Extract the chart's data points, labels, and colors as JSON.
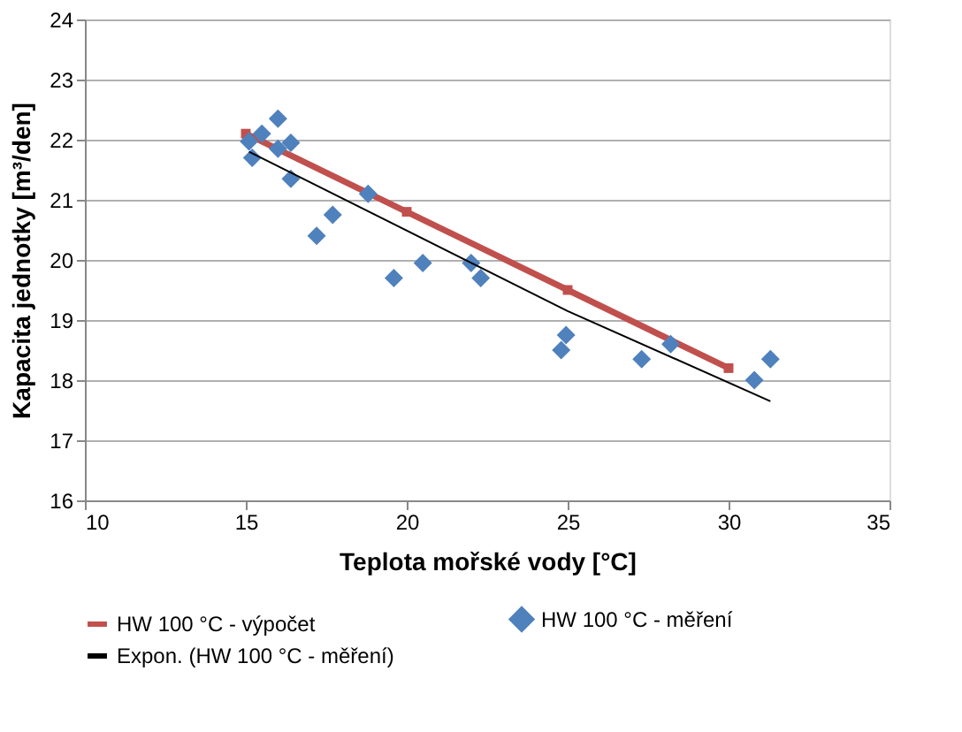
{
  "chart_data": {
    "type": "scatter",
    "xlabel": "Teplota mořské vody  [°C]",
    "ylabel": "Kapacita jednotky  [m³/den]",
    "xlim": [
      10,
      35
    ],
    "xticks": [
      10,
      15,
      20,
      25,
      30,
      35
    ],
    "ylim": [
      16,
      24
    ],
    "yticks": [
      16,
      17,
      18,
      19,
      20,
      21,
      22,
      23,
      24
    ],
    "grid": "y",
    "legend": "bottom",
    "series": [
      {
        "name": "HW 100 °C - výpočet",
        "type": "line",
        "marker": "square",
        "color": "#c0504d",
        "x": [
          15,
          20,
          25,
          30
        ],
        "values": [
          22.1,
          20.8,
          19.5,
          18.2
        ]
      },
      {
        "name": "HW 100 °C - měření",
        "marker": "diamond",
        "color": "#4f81bd",
        "x": [
          15.1,
          15.2,
          15.5,
          16.0,
          16.0,
          16.4,
          16.4,
          17.2,
          17.7,
          18.8,
          19.6,
          20.5,
          22.0,
          22.3,
          24.95,
          24.8,
          27.3,
          28.2,
          30.8,
          31.3
        ],
        "values": [
          21.97,
          21.7,
          22.1,
          22.35,
          21.85,
          21.95,
          21.35,
          20.4,
          20.75,
          21.1,
          19.7,
          19.95,
          19.95,
          19.7,
          18.75,
          18.5,
          18.35,
          18.6,
          18.0,
          18.35
        ]
      },
      {
        "name": "Expon. (HW 100 °C - měření)",
        "type": "line",
        "marker": "none",
        "color": "#000000",
        "x": [
          15.1,
          25,
          31.3
        ],
        "values": [
          21.8,
          19.15,
          17.65
        ]
      }
    ]
  }
}
